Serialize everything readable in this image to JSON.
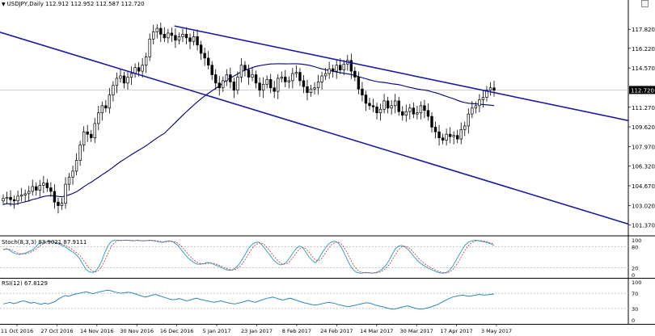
{
  "header": {
    "symbol_line": "USDJPY,Daily  112.912 112.952 112.587 112.720",
    "stoch_line": "Stoch(8,3,3) 83.9021 87.9111",
    "rsi_line": "RSI(12) 67.8129"
  },
  "colors": {
    "channel": "#1a1aa8",
    "ma": "#000080",
    "candle": "#000000",
    "stoch_main": "#3aa0c8",
    "stoch_signal": "#c03030",
    "rsi": "#2e86c1",
    "level_line": "#c0c0c0"
  },
  "chart_data": [
    {
      "type": "candlestick",
      "symbol": "USDJPY",
      "timeframe": "Daily",
      "ohlc_last": {
        "open": 112.912,
        "high": 112.952,
        "low": 112.587,
        "close": 112.72
      },
      "price_axis_ticks": [
        "117.820",
        "116.220",
        "114.570",
        "112.720",
        "111.270",
        "109.620",
        "107.970",
        "106.320",
        "104.670",
        "103.020",
        "101.370"
      ],
      "current_price": "112.720",
      "date_axis_ticks": [
        "11 Oct 2016",
        "27 Oct 2016",
        "14 Nov 2016",
        "30 Nov 2016",
        "16 Dec 2016",
        "5 Jan 2017",
        "23 Jan 2017",
        "8 Feb 2017",
        "24 Feb 2017",
        "14 Mar 2017",
        "30 Mar 2017",
        "17 Apr 2017",
        "3 May 2017"
      ],
      "ylim": [
        100.6,
        119.6
      ],
      "closes": [
        103.6,
        103.7,
        103.5,
        103.4,
        103.8,
        103.9,
        104.0,
        104.2,
        104.6,
        104.3,
        104.7,
        104.9,
        104.5,
        104.2,
        103.3,
        103.0,
        103.2,
        104.8,
        105.4,
        105.9,
        106.8,
        108.1,
        109.2,
        109.0,
        108.7,
        109.9,
        110.8,
        111.4,
        111.2,
        112.3,
        113.1,
        113.7,
        113.9,
        113.3,
        113.8,
        114.1,
        114.6,
        114.3,
        114.8,
        115.5,
        117.0,
        117.6,
        117.9,
        117.4,
        117.1,
        117.5,
        117.3,
        116.9,
        117.2,
        117.4,
        117.1,
        116.8,
        117.2,
        116.5,
        115.8,
        115.4,
        114.8,
        114.0,
        113.3,
        112.9,
        113.5,
        114.0,
        113.4,
        112.7,
        113.8,
        114.8,
        114.4,
        113.8,
        114.0,
        113.3,
        112.7,
        113.2,
        113.6,
        112.9,
        112.6,
        113.7,
        113.8,
        113.4,
        113.5,
        114.1,
        114.2,
        113.5,
        113.0,
        112.5,
        112.8,
        112.9,
        113.4,
        113.9,
        114.1,
        114.5,
        114.3,
        114.8,
        114.4,
        114.9,
        115.2,
        114.3,
        113.8,
        112.8,
        112.3,
        111.6,
        111.4,
        111.3,
        110.8,
        111.1,
        111.8,
        111.2,
        111.4,
        111.8,
        110.9,
        110.6,
        110.9,
        111.2,
        110.7,
        110.8,
        111.4,
        111.0,
        110.5,
        109.6,
        109.2,
        108.7,
        108.5,
        109.0,
        108.8,
        108.9,
        108.6,
        109.4,
        109.7,
        110.7,
        111.2,
        111.4,
        111.9,
        112.1,
        112.7,
        112.9,
        112.7
      ],
      "channel_upper": {
        "from": [
          "16 Dec 2016",
          118.1
        ],
        "to": [
          "3 May 2017",
          112.5
        ]
      },
      "channel_lower": {
        "from": [
          "11 Oct 2016",
          117.2
        ],
        "to": [
          "3 May 2017",
          104.9
        ]
      },
      "moving_average": "line"
    },
    {
      "type": "line",
      "name": "Stoch(8,3,3)",
      "ylim": [
        0,
        100
      ],
      "levels": [
        80,
        20
      ],
      "axis_ticks": [
        "100",
        "80",
        "20",
        "0"
      ],
      "last": {
        "main": 83.9021,
        "signal": 87.9111
      },
      "values": [
        72,
        75,
        70,
        64,
        60,
        58,
        60,
        62,
        66,
        70,
        78,
        88,
        92,
        94,
        96,
        95,
        93,
        90,
        86,
        82,
        76,
        70,
        64,
        56,
        46,
        30,
        15,
        8,
        6,
        10,
        22,
        42,
        66,
        85,
        96,
        99,
        99,
        98,
        99,
        99,
        98,
        97,
        99,
        98,
        97,
        98,
        99,
        98,
        96,
        94,
        93,
        96,
        97,
        95,
        90,
        82,
        70,
        58,
        48,
        40,
        34,
        30,
        30,
        32,
        35,
        33,
        30,
        26,
        22,
        18,
        14,
        12,
        14,
        20,
        30,
        44,
        60,
        76,
        86,
        92,
        94,
        88,
        76,
        64,
        52,
        40,
        32,
        28,
        30,
        38,
        50,
        64,
        76,
        82,
        78,
        64,
        50,
        40,
        34,
        46,
        62,
        76,
        88,
        94,
        96,
        92,
        80,
        62,
        42,
        24,
        12,
        6,
        4,
        5,
        6,
        5,
        4,
        6,
        10,
        16,
        26,
        40,
        58,
        74,
        82,
        84,
        80,
        72,
        62,
        50,
        40,
        32,
        26,
        20,
        16,
        12,
        8,
        5,
        4,
        6,
        12,
        24,
        40,
        56,
        72,
        86,
        94,
        97,
        99,
        98,
        96,
        94,
        92,
        88,
        84
      ]
    },
    {
      "type": "line",
      "name": "RSI(12)",
      "ylim": [
        0,
        100
      ],
      "levels": [
        70,
        30
      ],
      "axis_ticks": [
        "100",
        "70",
        "30",
        "0"
      ],
      "last": 67.8129,
      "values": [
        42,
        44,
        46,
        43,
        45,
        48,
        50,
        47,
        44,
        46,
        43,
        41,
        44,
        42,
        45,
        48,
        55,
        60,
        64,
        62,
        66,
        68,
        70,
        72,
        74,
        71,
        69,
        72,
        74,
        76,
        78,
        77,
        74,
        72,
        70,
        71,
        73,
        72,
        69,
        66,
        63,
        60,
        62,
        65,
        67,
        64,
        61,
        58,
        55,
        53,
        54,
        56,
        53,
        50,
        52,
        55,
        57,
        54,
        52,
        50,
        48,
        46,
        48,
        50,
        47,
        45,
        43,
        42,
        44,
        46,
        49,
        51,
        48,
        46,
        50,
        53,
        56,
        58,
        60,
        57,
        54,
        52,
        55,
        57,
        54,
        51,
        48,
        45,
        43,
        41,
        39,
        40,
        42,
        44,
        46,
        45,
        43,
        40,
        38,
        36,
        35,
        37,
        39,
        41,
        43,
        45,
        44,
        41,
        38,
        36,
        34,
        31,
        29,
        28,
        30,
        33,
        35,
        37,
        34,
        31,
        29,
        28,
        30,
        32,
        35,
        38,
        42,
        47,
        52,
        56,
        60,
        62,
        64,
        65,
        63,
        62,
        64,
        66,
        67,
        65,
        66,
        67,
        68
      ]
    }
  ]
}
